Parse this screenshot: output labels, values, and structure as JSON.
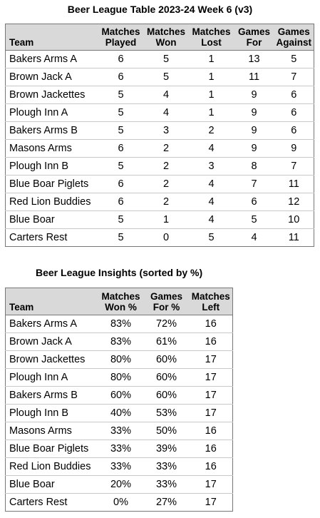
{
  "league_table": {
    "title": "Beer League Table 2023-24 Week 6 (v3)",
    "headers": {
      "team": "Team",
      "played": [
        "Matches",
        "Played"
      ],
      "won": [
        "Matches",
        "Won"
      ],
      "lost": [
        "Matches",
        "Lost"
      ],
      "games_for": [
        "Games",
        "For"
      ],
      "games_against": [
        "Games",
        "Against"
      ]
    },
    "rows": [
      {
        "team": "Bakers Arms A",
        "played": "6",
        "won": "5",
        "lost": "1",
        "games_for": "13",
        "games_against": "5"
      },
      {
        "team": "Brown Jack A",
        "played": "6",
        "won": "5",
        "lost": "1",
        "games_for": "11",
        "games_against": "7"
      },
      {
        "team": "Brown Jackettes",
        "played": "5",
        "won": "4",
        "lost": "1",
        "games_for": "9",
        "games_against": "6"
      },
      {
        "team": "Plough Inn A",
        "played": "5",
        "won": "4",
        "lost": "1",
        "games_for": "9",
        "games_against": "6"
      },
      {
        "team": "Bakers Arms B",
        "played": "5",
        "won": "3",
        "lost": "2",
        "games_for": "9",
        "games_against": "6"
      },
      {
        "team": "Masons Arms",
        "played": "6",
        "won": "2",
        "lost": "4",
        "games_for": "9",
        "games_against": "9"
      },
      {
        "team": "Plough Inn B",
        "played": "5",
        "won": "2",
        "lost": "3",
        "games_for": "8",
        "games_against": "7"
      },
      {
        "team": "Blue Boar Piglets",
        "played": "6",
        "won": "2",
        "lost": "4",
        "games_for": "7",
        "games_against": "11"
      },
      {
        "team": "Red Lion Buddies",
        "played": "6",
        "won": "2",
        "lost": "4",
        "games_for": "6",
        "games_against": "12"
      },
      {
        "team": "Blue Boar",
        "played": "5",
        "won": "1",
        "lost": "4",
        "games_for": "5",
        "games_against": "10"
      },
      {
        "team": "Carters Rest",
        "played": "5",
        "won": "0",
        "lost": "5",
        "games_for": "4",
        "games_against": "11"
      }
    ]
  },
  "insights_table": {
    "title": "Beer League Insights (sorted by %)",
    "headers": {
      "team": "Team",
      "won_pct": [
        "Matches",
        "Won %"
      ],
      "for_pct": [
        "Games",
        "For %"
      ],
      "left": [
        "Matches",
        "Left"
      ]
    },
    "rows": [
      {
        "team": "Bakers Arms A",
        "won_pct": "83%",
        "for_pct": "72%",
        "left": "16"
      },
      {
        "team": "Brown Jack A",
        "won_pct": "83%",
        "for_pct": "61%",
        "left": "16"
      },
      {
        "team": "Brown Jackettes",
        "won_pct": "80%",
        "for_pct": "60%",
        "left": "17"
      },
      {
        "team": "Plough Inn A",
        "won_pct": "80%",
        "for_pct": "60%",
        "left": "17"
      },
      {
        "team": "Bakers Arms B",
        "won_pct": "60%",
        "for_pct": "60%",
        "left": "17"
      },
      {
        "team": "Plough Inn B",
        "won_pct": "40%",
        "for_pct": "53%",
        "left": "17"
      },
      {
        "team": "Masons Arms",
        "won_pct": "33%",
        "for_pct": "50%",
        "left": "16"
      },
      {
        "team": "Blue Boar Piglets",
        "won_pct": "33%",
        "for_pct": "39%",
        "left": "16"
      },
      {
        "team": "Red Lion Buddies",
        "won_pct": "33%",
        "for_pct": "33%",
        "left": "16"
      },
      {
        "team": "Blue Boar",
        "won_pct": "20%",
        "for_pct": "33%",
        "left": "17"
      },
      {
        "team": "Carters Rest",
        "won_pct": "0%",
        "for_pct": "27%",
        "left": "17"
      }
    ]
  }
}
